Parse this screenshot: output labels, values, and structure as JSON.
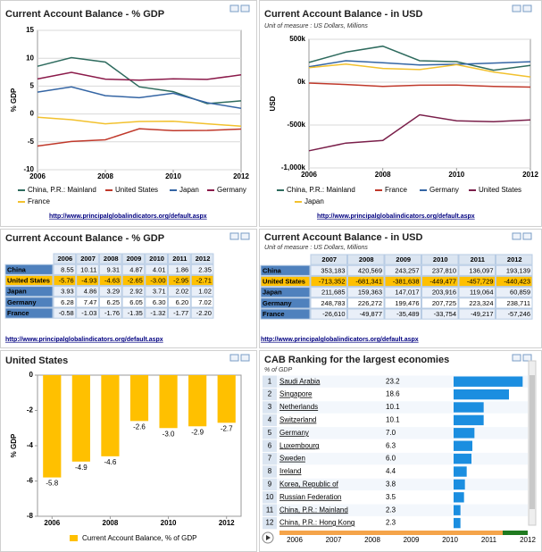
{
  "chart_data": [
    {
      "type": "line",
      "title": "Current Account Balance - % GDP",
      "y_label": "% GDP",
      "x": [
        2006,
        2007,
        2008,
        2009,
        2010,
        2011,
        2012
      ],
      "xlim": [
        2006,
        2012
      ],
      "xticks": [
        2006,
        2008,
        2010,
        2012
      ],
      "ylim": [
        -10,
        15
      ],
      "yticks": [
        -10,
        -5,
        0,
        5,
        10,
        15
      ],
      "grid": true,
      "series": [
        {
          "name": "China, P.R.: Mainland",
          "color": "#2e6b5e",
          "values": [
            8.55,
            10.11,
            9.31,
            4.87,
            4.01,
            1.86,
            2.35
          ]
        },
        {
          "name": "United States",
          "color": "#c0392b",
          "values": [
            -5.76,
            -4.93,
            -4.63,
            -2.65,
            -3.0,
            -2.95,
            -2.71
          ]
        },
        {
          "name": "Japan",
          "color": "#3465a4",
          "values": [
            3.93,
            4.86,
            3.29,
            2.92,
            3.71,
            2.02,
            1.02
          ]
        },
        {
          "name": "Germany",
          "color": "#8b1a4a",
          "values": [
            6.28,
            7.47,
            6.25,
            6.05,
            6.3,
            6.2,
            7.02
          ]
        },
        {
          "name": "France",
          "color": "#f2c12e",
          "values": [
            -0.58,
            -1.03,
            -1.76,
            -1.35,
            -1.32,
            -1.77,
            -2.2
          ]
        }
      ],
      "source": "http://www.principalglobalindicators.org/default.aspx"
    },
    {
      "type": "line",
      "title": "Current Account Balance - in USD",
      "subtitle": "Unit of measure : US Dollars, Millions",
      "y_label": "USD",
      "x": [
        2006,
        2007,
        2008,
        2009,
        2010,
        2011,
        2012
      ],
      "xlim": [
        2006,
        2012
      ],
      "xticks": [
        2006,
        2008,
        2010,
        2012
      ],
      "ylim": [
        -1000000,
        500000
      ],
      "yticks": [
        {
          "value": -1000000,
          "label": "-1,000k"
        },
        {
          "value": -500000,
          "label": "-500k"
        },
        {
          "value": 0,
          "label": "0k"
        },
        {
          "value": 500000,
          "label": "500k"
        }
      ],
      "grid": true,
      "series": [
        {
          "name": "China, P.R.: Mainland",
          "color": "#2e6b5e",
          "values": [
            230000,
            350000,
            420000,
            250000,
            240000,
            140000,
            195000
          ]
        },
        {
          "name": "France",
          "color": "#c0392b",
          "values": [
            -10000,
            -27000,
            -50000,
            -35000,
            -34000,
            -49000,
            -57000
          ]
        },
        {
          "name": "Germany",
          "color": "#3465a4",
          "values": [
            180000,
            250000,
            226000,
            200000,
            208000,
            223000,
            239000
          ]
        },
        {
          "name": "United States",
          "color": "#7a1f4a",
          "values": [
            -800000,
            -710000,
            -680000,
            -380000,
            -450000,
            -460000,
            -440000
          ]
        },
        {
          "name": "Japan",
          "color": "#f2c12e",
          "values": [
            170000,
            210000,
            160000,
            147000,
            204000,
            119000,
            61000
          ]
        }
      ],
      "source": "http://www.principalglobalindicators.org/default.aspx"
    },
    {
      "type": "bar",
      "title": "United States",
      "y_label": "% GDP",
      "legend": "Current Account Balance, % of GDP",
      "color": "#ffc000",
      "x": [
        2006,
        2007,
        2008,
        2009,
        2010,
        2011,
        2012
      ],
      "xlim": [
        2005.5,
        2012.5
      ],
      "xticks": [
        2006,
        2008,
        2010,
        2012
      ],
      "ylim": [
        -8,
        0
      ],
      "yticks": [
        -8,
        -6,
        -4,
        -2,
        0
      ],
      "values": [
        -5.8,
        -4.9,
        -4.6,
        -2.6,
        -3.0,
        -2.9,
        -2.7
      ],
      "value_labels": [
        "-5.8",
        "-4.9",
        "-4.6",
        "-2.6",
        "-3.0",
        "-2.9",
        "-2.7"
      ]
    },
    {
      "type": "bar",
      "orientation": "horizontal",
      "title": "CAB Ranking for the largest economies",
      "subtitle": "% of GDP",
      "color": "#1b8ee0",
      "ranks": [
        1,
        2,
        3,
        4,
        5,
        6,
        7,
        8,
        9,
        10,
        11,
        12
      ],
      "categories": [
        "Saudi Arabia",
        "Singapore",
        "Netherlands",
        "Switzerland",
        "Germany",
        "Luxembourg",
        "Sweden",
        "Ireland",
        "Korea, Republic of",
        "Russian Federation",
        "China, P.R.: Mainland",
        "China, P.R.: Hong Kong"
      ],
      "values": [
        23.2,
        18.6,
        10.1,
        10.1,
        7.0,
        6.3,
        6.0,
        4.4,
        3.8,
        3.5,
        2.3,
        2.3
      ],
      "value_labels": [
        "23.2",
        "18.6",
        "10.1",
        "10.1",
        "7.0",
        "6.3",
        "6.0",
        "4.4",
        "3.8",
        "3.5",
        "2.3",
        "2.3"
      ],
      "xlim": [
        0,
        24
      ],
      "timeline": [
        2006,
        2007,
        2008,
        2009,
        2010,
        2011,
        2012
      ]
    }
  ],
  "tables": [
    {
      "title": "Current Account Balance - % GDP",
      "header": [
        "2006",
        "2007",
        "2008",
        "2009",
        "2010",
        "2011",
        "2012"
      ],
      "rows": [
        [
          "China",
          "8.55",
          "10.11",
          "9.31",
          "4.87",
          "4.01",
          "1.86",
          "2.35"
        ],
        [
          "United States",
          "-5.76",
          "-4.93",
          "-4.63",
          "-2.65",
          "-3.00",
          "-2.95",
          "-2.71"
        ],
        [
          "Japan",
          "3.93",
          "4.86",
          "3.29",
          "2.92",
          "3.71",
          "2.02",
          "1.02"
        ],
        [
          "Germany",
          "6.28",
          "7.47",
          "6.25",
          "6.05",
          "6.30",
          "6.20",
          "7.02"
        ],
        [
          "France",
          "-0.58",
          "-1.03",
          "-1.76",
          "-1.35",
          "-1.32",
          "-1.77",
          "-2.20"
        ]
      ],
      "source": "http://www.principalglobalindicators.org/default.aspx"
    },
    {
      "title": "Current Account Balance - in USD",
      "subtitle": "Unit of measure : US Dollars, Millions",
      "header": [
        "2007",
        "2008",
        "2009",
        "2010",
        "2011",
        "2012"
      ],
      "rows": [
        [
          "China",
          "353,183",
          "420,569",
          "243,257",
          "237,810",
          "136,097",
          "193,139"
        ],
        [
          "United States",
          "-713,352",
          "-681,341",
          "-381,638",
          "-449,477",
          "-457,729",
          "-440,423"
        ],
        [
          "Japan",
          "211,685",
          "159,363",
          "147,017",
          "203,916",
          "119,064",
          "60,859"
        ],
        [
          "Germany",
          "248,783",
          "226,272",
          "199,476",
          "207,725",
          "223,324",
          "238,711"
        ],
        [
          "France",
          "-26,610",
          "-49,877",
          "-35,489",
          "-33,754",
          "-49,217",
          "-57,246"
        ]
      ],
      "source": "http://www.principalglobalindicators.org/default.aspx"
    }
  ]
}
